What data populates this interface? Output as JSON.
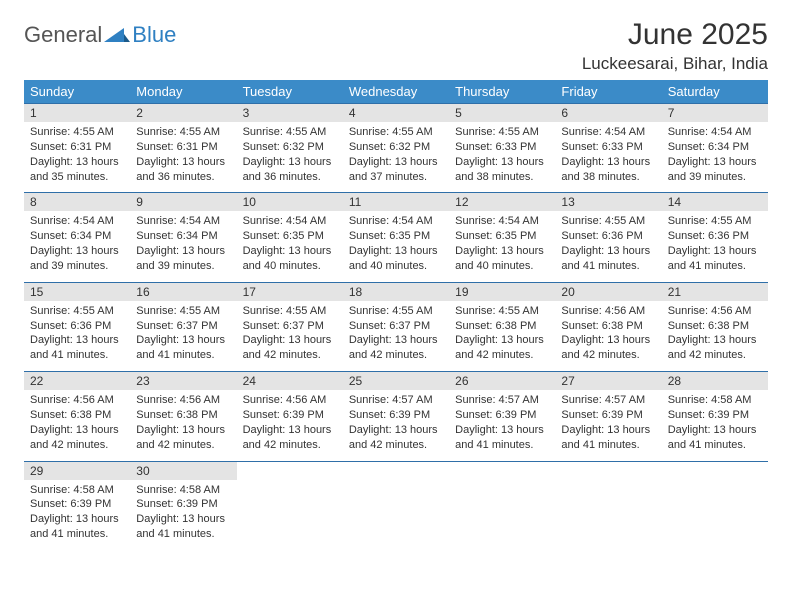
{
  "logo": {
    "general": "General",
    "blue": "Blue"
  },
  "title": "June 2025",
  "location": "Luckeesarai, Bihar, India",
  "colors": {
    "header_bg": "#3b8bc8",
    "header_text": "#ffffff",
    "daynum_bg": "#e4e4e4",
    "border": "#2f6fa8",
    "text": "#333333",
    "logo_gray": "#555555",
    "logo_blue": "#2f80c2"
  },
  "day_names": [
    "Sunday",
    "Monday",
    "Tuesday",
    "Wednesday",
    "Thursday",
    "Friday",
    "Saturday"
  ],
  "weeks": [
    {
      "nums": [
        "1",
        "2",
        "3",
        "4",
        "5",
        "6",
        "7"
      ],
      "cells": [
        {
          "sunrise": "Sunrise: 4:55 AM",
          "sunset": "Sunset: 6:31 PM",
          "day1": "Daylight: 13 hours",
          "day2": "and 35 minutes."
        },
        {
          "sunrise": "Sunrise: 4:55 AM",
          "sunset": "Sunset: 6:31 PM",
          "day1": "Daylight: 13 hours",
          "day2": "and 36 minutes."
        },
        {
          "sunrise": "Sunrise: 4:55 AM",
          "sunset": "Sunset: 6:32 PM",
          "day1": "Daylight: 13 hours",
          "day2": "and 36 minutes."
        },
        {
          "sunrise": "Sunrise: 4:55 AM",
          "sunset": "Sunset: 6:32 PM",
          "day1": "Daylight: 13 hours",
          "day2": "and 37 minutes."
        },
        {
          "sunrise": "Sunrise: 4:55 AM",
          "sunset": "Sunset: 6:33 PM",
          "day1": "Daylight: 13 hours",
          "day2": "and 38 minutes."
        },
        {
          "sunrise": "Sunrise: 4:54 AM",
          "sunset": "Sunset: 6:33 PM",
          "day1": "Daylight: 13 hours",
          "day2": "and 38 minutes."
        },
        {
          "sunrise": "Sunrise: 4:54 AM",
          "sunset": "Sunset: 6:34 PM",
          "day1": "Daylight: 13 hours",
          "day2": "and 39 minutes."
        }
      ]
    },
    {
      "nums": [
        "8",
        "9",
        "10",
        "11",
        "12",
        "13",
        "14"
      ],
      "cells": [
        {
          "sunrise": "Sunrise: 4:54 AM",
          "sunset": "Sunset: 6:34 PM",
          "day1": "Daylight: 13 hours",
          "day2": "and 39 minutes."
        },
        {
          "sunrise": "Sunrise: 4:54 AM",
          "sunset": "Sunset: 6:34 PM",
          "day1": "Daylight: 13 hours",
          "day2": "and 39 minutes."
        },
        {
          "sunrise": "Sunrise: 4:54 AM",
          "sunset": "Sunset: 6:35 PM",
          "day1": "Daylight: 13 hours",
          "day2": "and 40 minutes."
        },
        {
          "sunrise": "Sunrise: 4:54 AM",
          "sunset": "Sunset: 6:35 PM",
          "day1": "Daylight: 13 hours",
          "day2": "and 40 minutes."
        },
        {
          "sunrise": "Sunrise: 4:54 AM",
          "sunset": "Sunset: 6:35 PM",
          "day1": "Daylight: 13 hours",
          "day2": "and 40 minutes."
        },
        {
          "sunrise": "Sunrise: 4:55 AM",
          "sunset": "Sunset: 6:36 PM",
          "day1": "Daylight: 13 hours",
          "day2": "and 41 minutes."
        },
        {
          "sunrise": "Sunrise: 4:55 AM",
          "sunset": "Sunset: 6:36 PM",
          "day1": "Daylight: 13 hours",
          "day2": "and 41 minutes."
        }
      ]
    },
    {
      "nums": [
        "15",
        "16",
        "17",
        "18",
        "19",
        "20",
        "21"
      ],
      "cells": [
        {
          "sunrise": "Sunrise: 4:55 AM",
          "sunset": "Sunset: 6:36 PM",
          "day1": "Daylight: 13 hours",
          "day2": "and 41 minutes."
        },
        {
          "sunrise": "Sunrise: 4:55 AM",
          "sunset": "Sunset: 6:37 PM",
          "day1": "Daylight: 13 hours",
          "day2": "and 41 minutes."
        },
        {
          "sunrise": "Sunrise: 4:55 AM",
          "sunset": "Sunset: 6:37 PM",
          "day1": "Daylight: 13 hours",
          "day2": "and 42 minutes."
        },
        {
          "sunrise": "Sunrise: 4:55 AM",
          "sunset": "Sunset: 6:37 PM",
          "day1": "Daylight: 13 hours",
          "day2": "and 42 minutes."
        },
        {
          "sunrise": "Sunrise: 4:55 AM",
          "sunset": "Sunset: 6:38 PM",
          "day1": "Daylight: 13 hours",
          "day2": "and 42 minutes."
        },
        {
          "sunrise": "Sunrise: 4:56 AM",
          "sunset": "Sunset: 6:38 PM",
          "day1": "Daylight: 13 hours",
          "day2": "and 42 minutes."
        },
        {
          "sunrise": "Sunrise: 4:56 AM",
          "sunset": "Sunset: 6:38 PM",
          "day1": "Daylight: 13 hours",
          "day2": "and 42 minutes."
        }
      ]
    },
    {
      "nums": [
        "22",
        "23",
        "24",
        "25",
        "26",
        "27",
        "28"
      ],
      "cells": [
        {
          "sunrise": "Sunrise: 4:56 AM",
          "sunset": "Sunset: 6:38 PM",
          "day1": "Daylight: 13 hours",
          "day2": "and 42 minutes."
        },
        {
          "sunrise": "Sunrise: 4:56 AM",
          "sunset": "Sunset: 6:38 PM",
          "day1": "Daylight: 13 hours",
          "day2": "and 42 minutes."
        },
        {
          "sunrise": "Sunrise: 4:56 AM",
          "sunset": "Sunset: 6:39 PM",
          "day1": "Daylight: 13 hours",
          "day2": "and 42 minutes."
        },
        {
          "sunrise": "Sunrise: 4:57 AM",
          "sunset": "Sunset: 6:39 PM",
          "day1": "Daylight: 13 hours",
          "day2": "and 42 minutes."
        },
        {
          "sunrise": "Sunrise: 4:57 AM",
          "sunset": "Sunset: 6:39 PM",
          "day1": "Daylight: 13 hours",
          "day2": "and 41 minutes."
        },
        {
          "sunrise": "Sunrise: 4:57 AM",
          "sunset": "Sunset: 6:39 PM",
          "day1": "Daylight: 13 hours",
          "day2": "and 41 minutes."
        },
        {
          "sunrise": "Sunrise: 4:58 AM",
          "sunset": "Sunset: 6:39 PM",
          "day1": "Daylight: 13 hours",
          "day2": "and 41 minutes."
        }
      ]
    },
    {
      "nums": [
        "29",
        "30",
        "",
        "",
        "",
        "",
        ""
      ],
      "cells": [
        {
          "sunrise": "Sunrise: 4:58 AM",
          "sunset": "Sunset: 6:39 PM",
          "day1": "Daylight: 13 hours",
          "day2": "and 41 minutes."
        },
        {
          "sunrise": "Sunrise: 4:58 AM",
          "sunset": "Sunset: 6:39 PM",
          "day1": "Daylight: 13 hours",
          "day2": "and 41 minutes."
        },
        null,
        null,
        null,
        null,
        null
      ]
    }
  ]
}
